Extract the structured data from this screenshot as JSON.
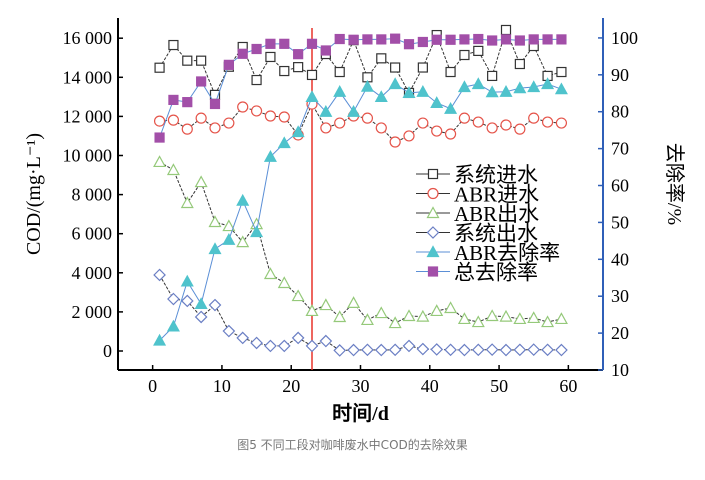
{
  "caption": "图5 不同工段对咖啡废水中COD的去除效果",
  "chart_data": {
    "type": "line",
    "xlabel": "时间/d",
    "ylabel": "COD/(mg·L⁻¹)",
    "y2label": "去除率/%",
    "xlim": [
      -5,
      65
    ],
    "ylim": [
      -972,
      17033
    ],
    "y2lim": [
      10,
      105.4
    ],
    "xticks": [
      0,
      10,
      20,
      30,
      40,
      50,
      60
    ],
    "yticks": [
      0,
      2000,
      4000,
      6000,
      8000,
      10000,
      12000,
      14000,
      16000
    ],
    "ytick_labels": [
      "0",
      "2 000",
      "4 000",
      "6 000",
      "8 000",
      "10 000",
      "12 000",
      "14 000",
      "16 000"
    ],
    "y2ticks": [
      10,
      20,
      30,
      40,
      50,
      60,
      70,
      80,
      90,
      100
    ],
    "vline_x": 23,
    "colors": {
      "vline": "#e8332a",
      "right_axis": "#2f5fb8"
    },
    "legend_position": "center-right",
    "x": [
      1,
      3,
      5,
      7,
      9,
      11,
      13,
      15,
      17,
      19,
      21,
      23,
      25,
      27,
      29,
      31,
      33,
      35,
      37,
      39,
      41,
      43,
      45,
      47,
      49,
      51,
      53,
      55,
      57,
      59
    ],
    "series": [
      {
        "name": "系统进水",
        "axis": "left",
        "marker": "square-open",
        "color": "#333333",
        "line": "#333333",
        "values": [
          14490,
          15650,
          14850,
          14850,
          13100,
          14540,
          15550,
          13860,
          15040,
          14320,
          14520,
          14120,
          15190,
          14270,
          15900,
          14000,
          14970,
          14500,
          13200,
          14500,
          16160,
          14270,
          15140,
          15350,
          14070,
          16420,
          14680,
          15600,
          14070,
          14270
        ]
      },
      {
        "name": "ABR进水",
        "axis": "left",
        "marker": "circle-open",
        "color": "#e5544a",
        "line": "#333333",
        "values": [
          11760,
          11810,
          11350,
          11910,
          11410,
          11660,
          12480,
          12280,
          12020,
          11970,
          11050,
          12630,
          11410,
          11660,
          12020,
          11910,
          11410,
          10690,
          11000,
          11660,
          11250,
          11100,
          11910,
          11710,
          11410,
          11560,
          11350,
          11910,
          11710,
          11660
        ]
      },
      {
        "name": "ABR出水",
        "axis": "left",
        "marker": "triangle-open",
        "color": "#95c97a",
        "line": "#333333",
        "values": [
          9670,
          9260,
          7570,
          8640,
          6600,
          6390,
          5570,
          6490,
          3940,
          3480,
          2810,
          2050,
          2350,
          1740,
          2460,
          1590,
          1940,
          1430,
          1790,
          1760,
          2050,
          2200,
          1640,
          1480,
          1790,
          1760,
          1640,
          1690,
          1480,
          1640
        ]
      },
      {
        "name": "系统出水",
        "axis": "left",
        "marker": "diamond-open",
        "color": "#6b7fc4",
        "line": "#333333",
        "values": [
          3890,
          2660,
          2560,
          1740,
          2350,
          1020,
          670,
          410,
          260,
          260,
          670,
          260,
          510,
          30,
          50,
          60,
          50,
          60,
          260,
          100,
          80,
          60,
          50,
          60,
          70,
          50,
          60,
          70,
          60,
          50
        ]
      },
      {
        "name": "ABR去除率",
        "axis": "right",
        "marker": "triangle-filled",
        "color": "#4fc3cc",
        "line": "#5b8fd6",
        "values": [
          18.0,
          21.8,
          34.0,
          27.9,
          42.8,
          45.3,
          55.9,
          47.4,
          67.8,
          71.5,
          74.5,
          84.0,
          80.0,
          85.4,
          80.0,
          86.8,
          84.0,
          87.5,
          85.1,
          85.4,
          82.4,
          80.8,
          86.7,
          87.5,
          85.3,
          85.4,
          86.4,
          86.7,
          87.5,
          86.1
        ]
      },
      {
        "name": "总去除率",
        "axis": "right",
        "marker": "square-filled",
        "color": "#a24fa8",
        "line": "#5b8fd6",
        "values": [
          73.0,
          83.2,
          82.6,
          88.2,
          82.1,
          92.7,
          95.7,
          97.0,
          98.4,
          98.4,
          95.6,
          98.4,
          96.6,
          99.7,
          99.5,
          99.6,
          99.6,
          99.8,
          98.3,
          98.9,
          99.5,
          99.5,
          99.6,
          99.7,
          99.3,
          99.6,
          99.3,
          99.6,
          99.6,
          99.6
        ]
      }
    ]
  }
}
